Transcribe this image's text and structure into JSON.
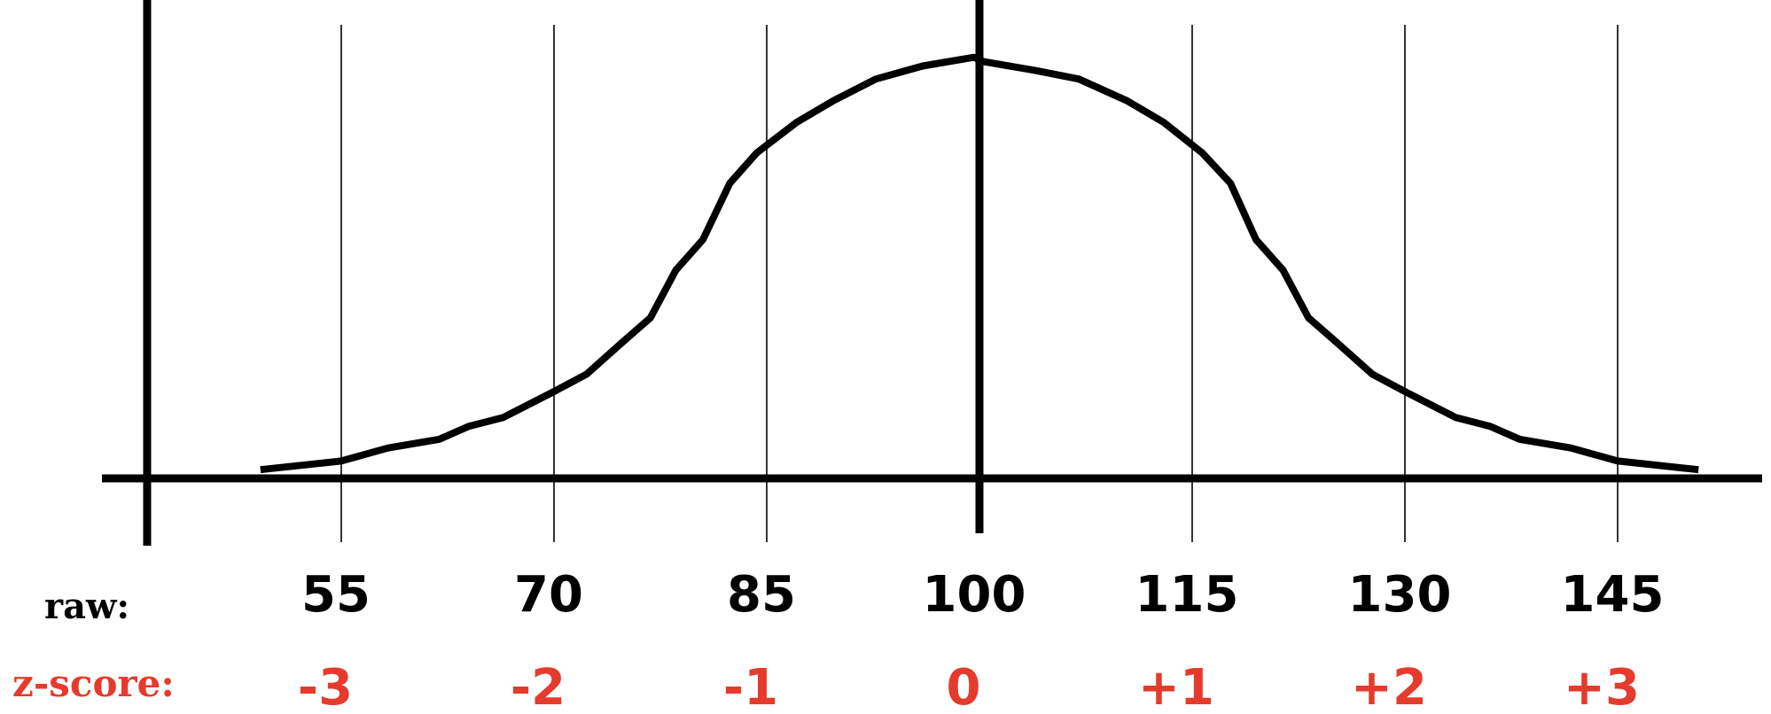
{
  "chart_data": {
    "type": "line",
    "x_scale": "linear",
    "x_ticks": [
      55,
      70,
      85,
      100,
      115,
      130,
      145
    ],
    "z_ticks": [
      "-3",
      "-2",
      "-1",
      "0",
      "+1",
      "+2",
      "+3"
    ],
    "raw_ticks": [
      "55",
      "70",
      "85",
      "100",
      "115",
      "130",
      "145"
    ],
    "row_labels": {
      "raw": "raw:",
      "z": "z-score:"
    },
    "mean": 100,
    "sd": 15,
    "grid": "vertical lines at each tick",
    "series": [
      {
        "points": [
          [
            49.3,
            0.02
          ],
          [
            55.0,
            0.04
          ],
          [
            58.3,
            0.07
          ],
          [
            61.9,
            0.09
          ],
          [
            64.0,
            0.12
          ],
          [
            66.4,
            0.14
          ],
          [
            70.0,
            0.2
          ],
          [
            72.3,
            0.24
          ],
          [
            74.7,
            0.31
          ],
          [
            76.8,
            0.37
          ],
          [
            78.6,
            0.48
          ],
          [
            80.5,
            0.55
          ],
          [
            82.4,
            0.68
          ],
          [
            84.3,
            0.75
          ],
          [
            87.1,
            0.82
          ],
          [
            89.7,
            0.87
          ],
          [
            92.7,
            0.92
          ],
          [
            96.0,
            0.95
          ],
          [
            99.6,
            0.97
          ],
          [
            100.3,
            0.96
          ],
          [
            103.9,
            0.94
          ],
          [
            107.0,
            0.92
          ],
          [
            110.4,
            0.87
          ],
          [
            113.0,
            0.82
          ],
          [
            115.7,
            0.75
          ],
          [
            117.7,
            0.68
          ],
          [
            119.5,
            0.55
          ],
          [
            121.4,
            0.48
          ],
          [
            123.2,
            0.37
          ],
          [
            125.3,
            0.31
          ],
          [
            127.7,
            0.24
          ],
          [
            130.0,
            0.2
          ],
          [
            133.6,
            0.14
          ],
          [
            136.0,
            0.12
          ],
          [
            138.1,
            0.09
          ],
          [
            141.7,
            0.07
          ],
          [
            145.0,
            0.04
          ],
          [
            150.7,
            0.02
          ]
        ]
      }
    ],
    "colors": {
      "line": "#000000",
      "z_labels": "#e53b2c"
    }
  }
}
